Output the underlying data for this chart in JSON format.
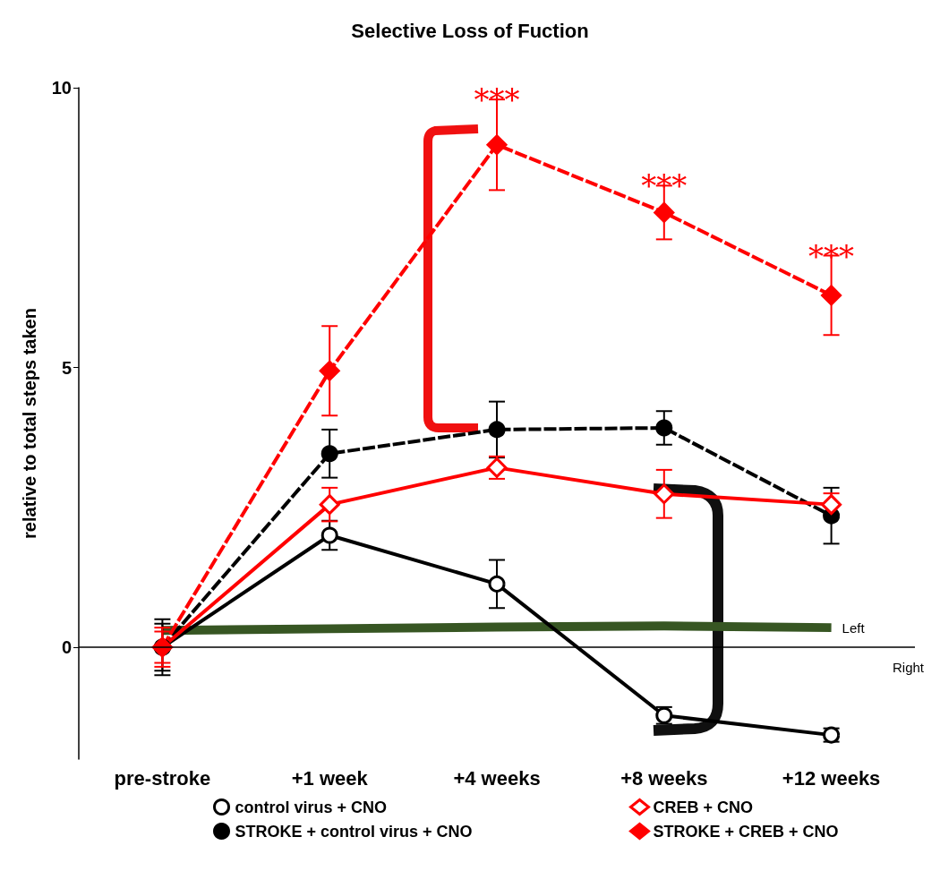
{
  "chart_data": {
    "type": "line",
    "title": "Selective Loss of Fuction",
    "ylabel": "relative to total steps taken",
    "categories": [
      "pre-stroke",
      "+1 week",
      "+4 weeks",
      "+8 weeks",
      "+12 weeks"
    ],
    "ylim": [
      -2,
      10
    ],
    "yticks": [
      0,
      5,
      10
    ],
    "grid": false,
    "legend": "bottom",
    "series": [
      {
        "name": "control virus + CNO",
        "color": "#000000",
        "marker": "circle",
        "line_style": "solid",
        "values": [
          0,
          2.0,
          1.13,
          -1.22,
          -1.57
        ],
        "errors": [
          0.5,
          0.26,
          0.43,
          0.15,
          0.12
        ]
      },
      {
        "name": "STROKE + control virus + CNO",
        "color": "#000000",
        "marker": "circle",
        "line_style": "dashed",
        "values": [
          0,
          3.46,
          3.89,
          3.92,
          2.35
        ],
        "errors": [
          0.42,
          0.43,
          0.5,
          0.3,
          0.5
        ]
      },
      {
        "name": "CREB + CNO",
        "color": "#ff0000",
        "marker": "diamond",
        "line_style": "solid",
        "values": [
          0,
          2.55,
          3.21,
          2.74,
          2.55
        ],
        "errors": [
          0.35,
          0.3,
          0.2,
          0.43,
          0.2
        ]
      },
      {
        "name": "STROKE + CREB + CNO",
        "color": "#ff0000",
        "marker": "diamond",
        "line_style": "dashed",
        "values": [
          0,
          4.94,
          8.98,
          7.77,
          6.29
        ],
        "errors": [
          0.28,
          0.8,
          0.81,
          0.48,
          0.71
        ]
      },
      {
        "name": "Left",
        "color": "#375623",
        "marker": "none",
        "line_style": "solid",
        "values": [
          0.3,
          0.33,
          0.36,
          0.38,
          0.35
        ]
      }
    ],
    "ref_lines": [
      {
        "axis": "y",
        "value": 0,
        "label": "Right",
        "color": "#000000"
      }
    ],
    "annotations": [
      {
        "text": "***",
        "x": "+4 weeks",
        "y": 9.8
      },
      {
        "text": "***",
        "x": "+8 weeks",
        "y": 8.25
      },
      {
        "text": "***",
        "x": "+12 weeks",
        "y": 7.0
      }
    ]
  }
}
